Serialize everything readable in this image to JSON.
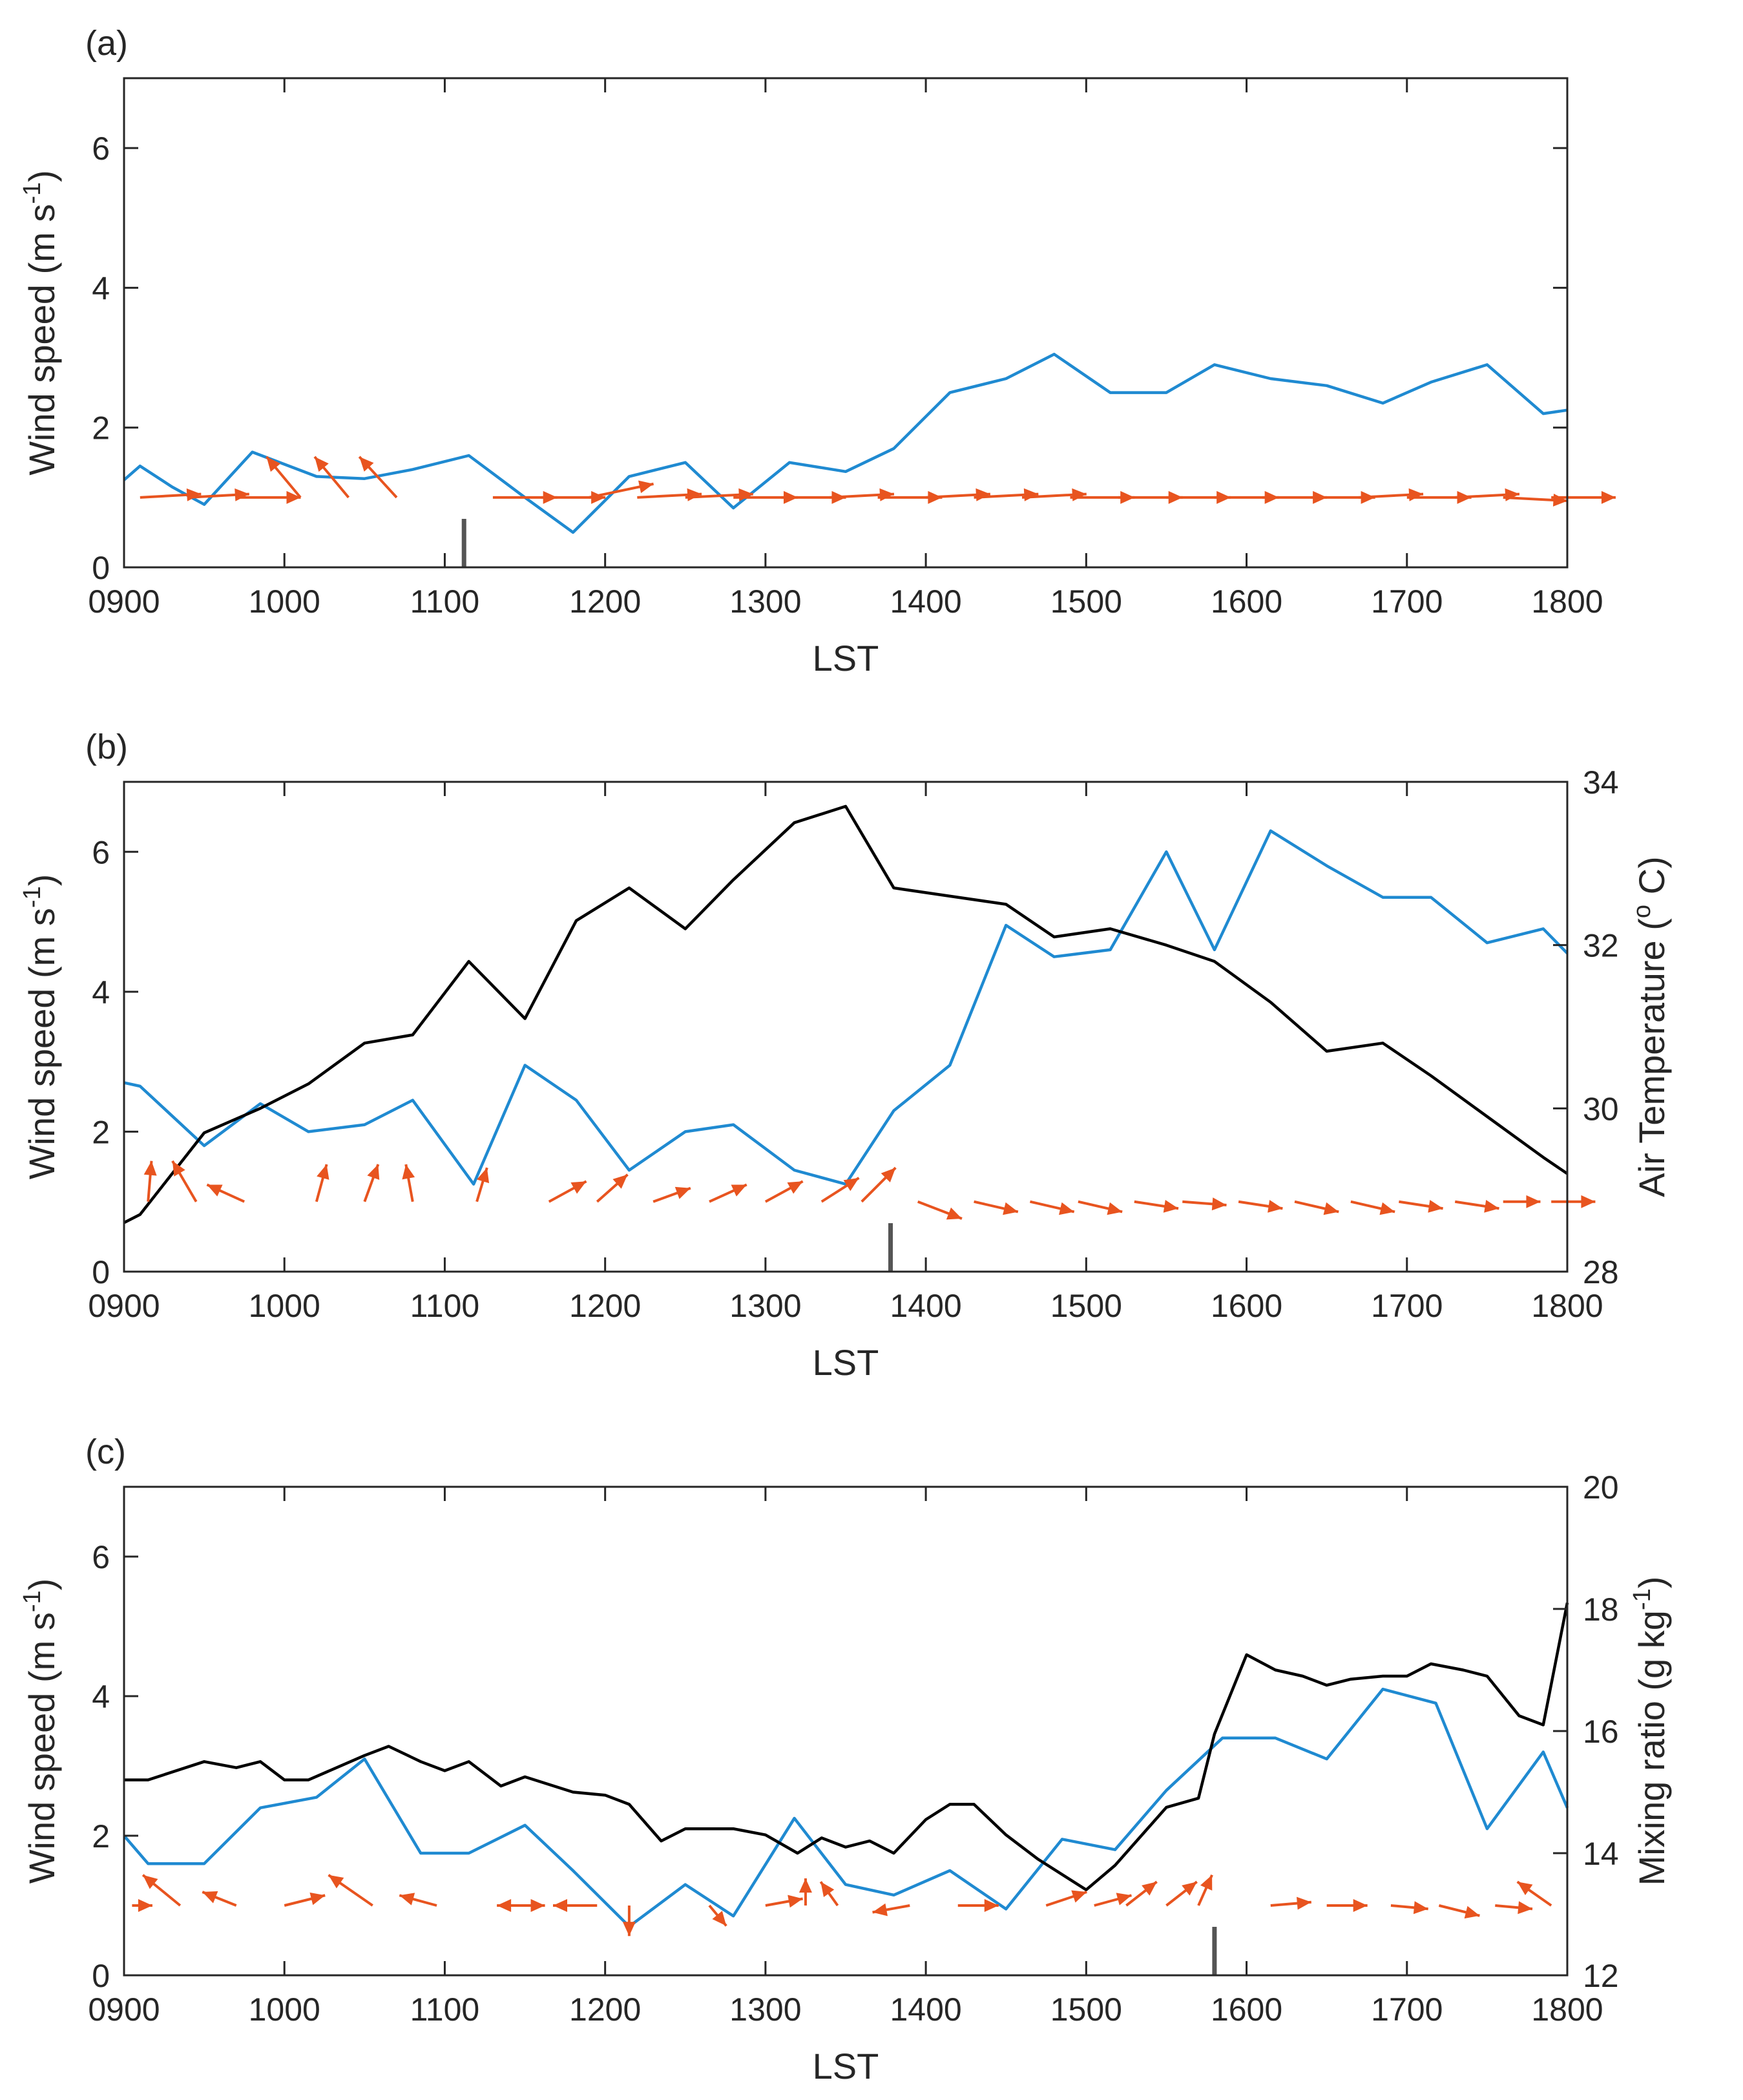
{
  "chart_data": [
    {
      "type": "line",
      "panel_label": "(a)",
      "xlabel": "LST",
      "ylabel": "Wind speed (m s",
      "ylabel_sup": "-1",
      "ylabel_close": ")",
      "xlim": [
        900,
        1800
      ],
      "ylim": [
        0,
        7
      ],
      "x_ticks": [
        900,
        1000,
        1100,
        1200,
        1300,
        1400,
        1500,
        1600,
        1700,
        1800
      ],
      "x_tick_labels": [
        "0900",
        "1000",
        "1100",
        "1200",
        "1300",
        "1400",
        "1500",
        "1600",
        "1700",
        "1800"
      ],
      "y_ticks": [
        0,
        2,
        4,
        6
      ],
      "y_tick_labels": [
        "0",
        "2",
        "4",
        "6"
      ],
      "colors": {
        "wind_speed": "#1f8ad1",
        "vectors": "#e8541f",
        "marker": "#555555"
      },
      "series": [
        {
          "name": "Wind speed",
          "axis": "left",
          "x": [
            900,
            910,
            930,
            950,
            980,
            1020,
            1050,
            1080,
            1115,
            1150,
            1180,
            1215,
            1250,
            1280,
            1315,
            1350,
            1380,
            1415,
            1450,
            1480,
            1515,
            1550,
            1580,
            1615,
            1650,
            1685,
            1715,
            1750,
            1785,
            1800
          ],
          "values": [
            1.25,
            1.45,
            1.15,
            0.9,
            1.65,
            1.3,
            1.27,
            1.4,
            1.6,
            1.0,
            0.5,
            1.3,
            1.5,
            0.85,
            1.5,
            1.37,
            1.7,
            2.5,
            2.7,
            3.05,
            2.5,
            2.5,
            2.9,
            2.7,
            2.6,
            2.35,
            2.65,
            2.9,
            2.2,
            2.25
          ]
        }
      ],
      "wind_vectors": {
        "baseline": 1.0,
        "x": [
          910,
          940,
          970,
          1010,
          1040,
          1070,
          1130,
          1160,
          1190,
          1220,
          1250,
          1280,
          1310,
          1340,
          1370,
          1400,
          1430,
          1460,
          1490,
          1520,
          1550,
          1580,
          1610,
          1640,
          1670,
          1700,
          1730,
          1760,
          1790
        ],
        "u": [
          0.9,
          0.9,
          0.95,
          -0.5,
          -0.5,
          -0.55,
          0.95,
          0.95,
          0.95,
          0.95,
          1.0,
          0.95,
          0.95,
          0.95,
          0.95,
          0.95,
          0.95,
          0.95,
          0.95,
          0.95,
          0.95,
          0.95,
          0.95,
          0.95,
          0.95,
          0.95,
          0.95,
          0.95,
          0.95
        ],
        "v": [
          0.05,
          0.05,
          0.0,
          0.6,
          0.6,
          0.6,
          0.0,
          0.0,
          0.2,
          0.05,
          0.05,
          0.0,
          0.0,
          0.05,
          0.0,
          0.05,
          0.05,
          0.05,
          0.0,
          0.0,
          0.0,
          0.0,
          0.0,
          0.0,
          0.05,
          0.0,
          0.05,
          -0.05,
          0.0
        ]
      },
      "event_marker_x": 1112
    },
    {
      "type": "line",
      "panel_label": "(b)",
      "xlabel": "LST",
      "ylabel": "Wind speed (m s",
      "ylabel_sup": "-1",
      "ylabel_close": ")",
      "ylabel_right": "Air Temperature (",
      "ylabel_right_sup": "o",
      "ylabel_right_close": " C)",
      "xlim": [
        900,
        1800
      ],
      "ylim": [
        0,
        7
      ],
      "ylim_right": [
        28,
        34
      ],
      "x_ticks": [
        900,
        1000,
        1100,
        1200,
        1300,
        1400,
        1500,
        1600,
        1700,
        1800
      ],
      "x_tick_labels": [
        "0900",
        "1000",
        "1100",
        "1200",
        "1300",
        "1400",
        "1500",
        "1600",
        "1700",
        "1800"
      ],
      "y_ticks": [
        0,
        2,
        4,
        6
      ],
      "y_tick_labels": [
        "0",
        "2",
        "4",
        "6"
      ],
      "y_ticks_right": [
        28,
        30,
        32,
        34
      ],
      "y_tick_labels_right": [
        "28",
        "30",
        "32",
        "34"
      ],
      "colors": {
        "wind_speed": "#1f8ad1",
        "air_temperature": "#000000",
        "vectors": "#e8541f",
        "marker": "#555555"
      },
      "series": [
        {
          "name": "Wind speed",
          "axis": "left",
          "x": [
            900,
            910,
            950,
            985,
            1015,
            1050,
            1080,
            1118,
            1150,
            1182,
            1215,
            1250,
            1280,
            1318,
            1350,
            1380,
            1415,
            1450,
            1480,
            1515,
            1550,
            1580,
            1615,
            1650,
            1685,
            1715,
            1750,
            1785,
            1800
          ],
          "values": [
            2.7,
            2.65,
            1.8,
            2.4,
            2.0,
            2.1,
            2.45,
            1.25,
            2.95,
            2.45,
            1.45,
            2.0,
            2.1,
            1.45,
            1.25,
            2.3,
            2.95,
            4.95,
            4.5,
            4.6,
            6.0,
            4.6,
            6.3,
            5.8,
            5.35,
            5.35,
            4.7,
            4.9,
            4.55
          ]
        },
        {
          "name": "Air Temperature",
          "axis": "right",
          "x": [
            900,
            910,
            950,
            985,
            1015,
            1050,
            1080,
            1115,
            1150,
            1182,
            1215,
            1250,
            1280,
            1318,
            1350,
            1380,
            1415,
            1450,
            1480,
            1515,
            1550,
            1580,
            1615,
            1650,
            1685,
            1715,
            1750,
            1785,
            1800
          ],
          "values": [
            28.6,
            28.7,
            29.7,
            30.0,
            30.3,
            30.8,
            30.9,
            31.8,
            31.1,
            32.3,
            32.7,
            32.2,
            32.8,
            33.5,
            33.7,
            32.7,
            32.6,
            32.5,
            32.1,
            32.2,
            32.0,
            31.8,
            31.3,
            30.7,
            30.8,
            30.4,
            29.9,
            29.4,
            29.2
          ]
        }
      ],
      "wind_vectors": {
        "baseline": 1.0,
        "x": [
          915,
          945,
          975,
          1020,
          1050,
          1080,
          1120,
          1165,
          1195,
          1230,
          1265,
          1300,
          1335,
          1360,
          1395,
          1430,
          1465,
          1495,
          1530,
          1560,
          1595,
          1630,
          1665,
          1695,
          1730,
          1760,
          1790
        ],
        "u": [
          0.05,
          -0.35,
          -0.55,
          0.15,
          0.2,
          -0.1,
          0.15,
          0.55,
          0.45,
          0.55,
          0.55,
          0.55,
          0.55,
          0.5,
          0.65,
          0.65,
          0.65,
          0.65,
          0.65,
          0.65,
          0.65,
          0.65,
          0.65,
          0.65,
          0.65,
          0.55,
          0.65
        ],
        "v": [
          0.6,
          0.6,
          0.25,
          0.55,
          0.55,
          0.55,
          0.5,
          0.3,
          0.4,
          0.2,
          0.25,
          0.3,
          0.35,
          0.5,
          -0.25,
          -0.15,
          -0.15,
          -0.15,
          -0.1,
          -0.05,
          -0.1,
          -0.15,
          -0.15,
          -0.1,
          -0.1,
          0.0,
          0.0
        ]
      },
      "event_marker_x": 1378
    },
    {
      "type": "line",
      "panel_label": "(c)",
      "xlabel": "LST",
      "ylabel": "Wind speed (m s",
      "ylabel_sup": "-1",
      "ylabel_close": ")",
      "ylabel_right": "Mixing ratio (g kg",
      "ylabel_right_sup": "-1",
      "ylabel_right_close": ")",
      "xlim": [
        900,
        1800
      ],
      "ylim": [
        0,
        7
      ],
      "ylim_right": [
        12,
        20
      ],
      "x_ticks": [
        900,
        1000,
        1100,
        1200,
        1300,
        1400,
        1500,
        1600,
        1700,
        1800
      ],
      "x_tick_labels": [
        "0900",
        "1000",
        "1100",
        "1200",
        "1300",
        "1400",
        "1500",
        "1600",
        "1700",
        "1800"
      ],
      "y_ticks": [
        0,
        2,
        4,
        6
      ],
      "y_tick_labels": [
        "0",
        "2",
        "4",
        "6"
      ],
      "y_ticks_right": [
        12,
        14,
        16,
        18,
        20
      ],
      "y_tick_labels_right": [
        "12",
        "14",
        "16",
        "18",
        "20"
      ],
      "colors": {
        "wind_speed": "#1f8ad1",
        "mixing_ratio": "#000000",
        "vectors": "#e8541f",
        "marker": "#555555"
      },
      "series": [
        {
          "name": "Wind speed",
          "axis": "left",
          "x": [
            900,
            915,
            950,
            985,
            1020,
            1050,
            1085,
            1115,
            1150,
            1180,
            1215,
            1250,
            1280,
            1318,
            1350,
            1380,
            1415,
            1450,
            1485,
            1518,
            1550,
            1585,
            1618,
            1650,
            1685,
            1718,
            1750,
            1785,
            1800
          ],
          "values": [
            2.0,
            1.6,
            1.6,
            2.4,
            2.55,
            3.1,
            1.75,
            1.75,
            2.15,
            1.5,
            0.7,
            1.3,
            0.85,
            2.25,
            1.3,
            1.15,
            1.5,
            0.95,
            1.95,
            1.8,
            2.65,
            3.4,
            3.4,
            3.1,
            4.1,
            3.9,
            2.1,
            3.2,
            2.4
          ]
        },
        {
          "name": "Mixing ratio",
          "axis": "right",
          "x": [
            900,
            915,
            950,
            970,
            985,
            1000,
            1015,
            1050,
            1065,
            1085,
            1100,
            1115,
            1135,
            1150,
            1180,
            1200,
            1215,
            1235,
            1250,
            1280,
            1300,
            1320,
            1335,
            1350,
            1365,
            1380,
            1400,
            1415,
            1430,
            1450,
            1470,
            1500,
            1518,
            1550,
            1570,
            1580,
            1600,
            1618,
            1635,
            1650,
            1665,
            1685,
            1700,
            1715,
            1735,
            1750,
            1770,
            1785,
            1800
          ],
          "values": [
            15.2,
            15.2,
            15.5,
            15.4,
            15.5,
            15.2,
            15.2,
            15.6,
            15.75,
            15.5,
            15.35,
            15.5,
            15.1,
            15.25,
            15.0,
            14.95,
            14.8,
            14.2,
            14.4,
            14.4,
            14.3,
            14.0,
            14.25,
            14.1,
            14.2,
            14.0,
            14.55,
            14.8,
            14.8,
            14.3,
            13.9,
            13.4,
            13.8,
            14.75,
            14.9,
            15.95,
            17.25,
            17.0,
            16.9,
            16.75,
            16.85,
            16.9,
            16.9,
            17.1,
            17.0,
            16.9,
            16.25,
            16.1,
            18.1
          ]
        }
      ],
      "wind_vectors": {
        "baseline": 1.0,
        "x": [
          905,
          935,
          970,
          1000,
          1055,
          1095,
          1135,
          1160,
          1195,
          1215,
          1265,
          1300,
          1325,
          1345,
          1390,
          1420,
          1475,
          1505,
          1525,
          1550,
          1570,
          1615,
          1650,
          1690,
          1720,
          1755,
          1790
        ],
        "u": [
          0.3,
          -0.55,
          -0.5,
          0.6,
          -0.65,
          -0.55,
          0.65,
          -0.65,
          -0.65,
          0.0,
          0.25,
          0.55,
          0.0,
          -0.25,
          -0.55,
          0.6,
          0.6,
          0.55,
          0.45,
          0.45,
          0.2,
          0.6,
          0.6,
          0.55,
          0.6,
          0.55,
          -0.5
        ],
        "v": [
          0.0,
          0.45,
          0.2,
          0.15,
          0.45,
          0.15,
          0.0,
          0.0,
          0.0,
          -0.45,
          -0.3,
          0.1,
          0.4,
          0.35,
          -0.1,
          0.0,
          0.2,
          0.15,
          0.35,
          0.35,
          0.45,
          0.05,
          0.0,
          -0.05,
          -0.15,
          -0.05,
          0.35
        ]
      },
      "event_marker_x": 1580
    }
  ]
}
